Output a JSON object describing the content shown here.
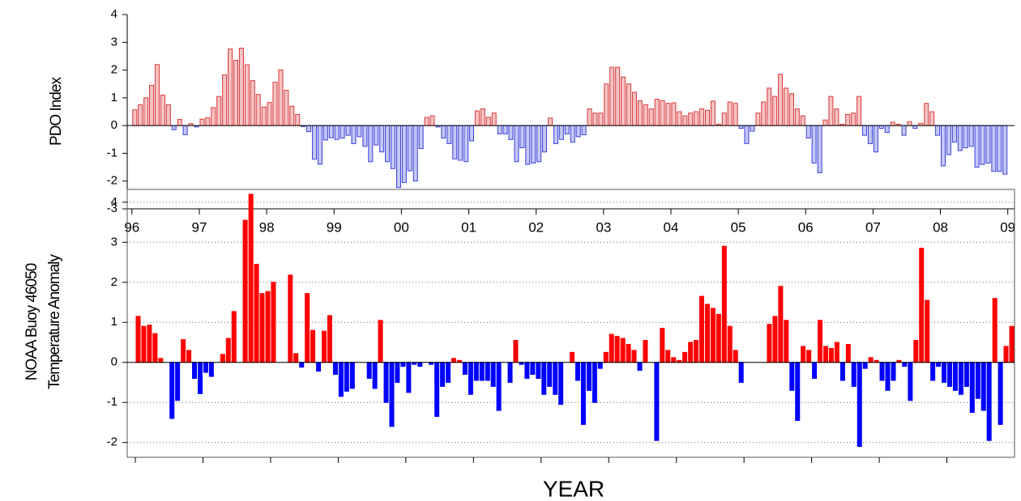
{
  "chart_data": [
    {
      "type": "bar",
      "ylabel": "PDO Index",
      "xlim": [
        1995.93,
        2009.1
      ],
      "ylim": [
        -3,
        4
      ],
      "xticks": [
        {
          "value": 1996,
          "label": "96"
        },
        {
          "value": 1997,
          "label": "97"
        },
        {
          "value": 1998,
          "label": "98"
        },
        {
          "value": 1999,
          "label": "99"
        },
        {
          "value": 2000,
          "label": "00"
        },
        {
          "value": 2001,
          "label": "01"
        },
        {
          "value": 2002,
          "label": "02"
        },
        {
          "value": 2003,
          "label": "03"
        },
        {
          "value": 2004,
          "label": "04"
        },
        {
          "value": 2005,
          "label": "05"
        },
        {
          "value": 2006,
          "label": "06"
        },
        {
          "value": 2007,
          "label": "07"
        },
        {
          "value": 2008,
          "label": "08"
        },
        {
          "value": 2009,
          "label": "09"
        }
      ],
      "yticks": [
        -3,
        -2,
        -1,
        0,
        1,
        2,
        3,
        4
      ],
      "grid": false,
      "positive_color": "#f6c4c4",
      "positive_edge": "#d9383a",
      "negative_color": "#c4c8f6",
      "negative_edge": "#3a40d9",
      "x": [
        1996.0,
        1996.083,
        1996.167,
        1996.25,
        1996.333,
        1996.417,
        1996.5,
        1996.583,
        1996.667,
        1996.75,
        1996.833,
        1996.917,
        1997.0,
        1997.083,
        1997.167,
        1997.25,
        1997.333,
        1997.417,
        1997.5,
        1997.583,
        1997.667,
        1997.75,
        1997.833,
        1997.917,
        1998.0,
        1998.083,
        1998.167,
        1998.25,
        1998.333,
        1998.417,
        1998.5,
        1998.583,
        1998.667,
        1998.75,
        1998.833,
        1998.917,
        1999.0,
        1999.083,
        1999.167,
        1999.25,
        1999.333,
        1999.417,
        1999.5,
        1999.583,
        1999.667,
        1999.75,
        1999.833,
        1999.917,
        2000.0,
        2000.083,
        2000.167,
        2000.25,
        2000.333,
        2000.417,
        2000.5,
        2000.583,
        2000.667,
        2000.75,
        2000.833,
        2000.917,
        2001.0,
        2001.083,
        2001.167,
        2001.25,
        2001.333,
        2001.417,
        2001.5,
        2001.583,
        2001.667,
        2001.75,
        2001.833,
        2001.917,
        2002.0,
        2002.083,
        2002.167,
        2002.25,
        2002.333,
        2002.417,
        2002.5,
        2002.583,
        2002.667,
        2002.75,
        2002.833,
        2002.917,
        2003.0,
        2003.083,
        2003.167,
        2003.25,
        2003.333,
        2003.417,
        2003.5,
        2003.583,
        2003.667,
        2003.75,
        2003.833,
        2003.917,
        2004.0,
        2004.083,
        2004.167,
        2004.25,
        2004.333,
        2004.417,
        2004.5,
        2004.583,
        2004.667,
        2004.75,
        2004.833,
        2004.917,
        2005.0,
        2005.083,
        2005.167,
        2005.25,
        2005.333,
        2005.417,
        2005.5,
        2005.583,
        2005.667,
        2005.75,
        2005.833,
        2005.917,
        2006.0,
        2006.083,
        2006.167,
        2006.25,
        2006.333,
        2006.417,
        2006.5,
        2006.583,
        2006.667,
        2006.75,
        2006.833,
        2006.917,
        2007.0,
        2007.083,
        2007.167,
        2007.25,
        2007.333,
        2007.417,
        2007.5,
        2007.583,
        2007.667,
        2007.75,
        2007.833,
        2007.917,
        2008.0,
        2008.083,
        2008.167,
        2008.25,
        2008.333,
        2008.417,
        2008.5,
        2008.583,
        2008.667,
        2008.75,
        2008.833,
        2008.917
      ],
      "values": [
        0.57,
        0.75,
        1.0,
        1.45,
        2.2,
        1.1,
        0.75,
        -0.15,
        0.22,
        -0.33,
        0.07,
        -0.05,
        0.23,
        0.28,
        0.65,
        1.05,
        1.83,
        2.76,
        2.35,
        2.79,
        2.19,
        1.62,
        1.12,
        0.67,
        0.83,
        1.56,
        2.01,
        1.27,
        0.7,
        0.4,
        -0.04,
        -0.22,
        -1.21,
        -1.39,
        -0.52,
        -0.44,
        -0.5,
        -0.45,
        -0.35,
        -0.65,
        -0.4,
        -0.75,
        -1.3,
        -0.7,
        -0.95,
        -1.3,
        -1.55,
        -2.23,
        -2.05,
        -1.63,
        -2.0,
        -0.83,
        0.29,
        0.35,
        -0.05,
        -0.45,
        -0.65,
        -1.2,
        -1.25,
        -1.3,
        -0.55,
        0.53,
        0.6,
        0.3,
        0.45,
        -0.3,
        -0.3,
        -0.5,
        -1.3,
        -0.8,
        -1.4,
        -1.35,
        -1.3,
        -0.95,
        0.27,
        -0.65,
        -0.5,
        -0.3,
        -0.6,
        -0.4,
        -0.33,
        0.6,
        0.45,
        0.45,
        1.5,
        2.1,
        2.1,
        1.75,
        1.5,
        1.2,
        0.9,
        0.75,
        0.6,
        0.95,
        0.9,
        0.8,
        0.82,
        0.5,
        0.35,
        0.45,
        0.5,
        0.6,
        0.55,
        0.88,
        0.05,
        0.45,
        0.85,
        0.8,
        -0.1,
        -0.65,
        -0.2,
        0.45,
        0.85,
        1.35,
        1.05,
        1.85,
        1.35,
        1.15,
        0.6,
        0.35,
        -0.45,
        -1.35,
        -1.7,
        0.2,
        1.05,
        0.6,
        0.05,
        0.4,
        0.45,
        1.05,
        -0.35,
        -0.65,
        -0.95,
        -0.1,
        -0.25,
        0.12,
        0.05,
        -0.35,
        0.14,
        -0.1,
        0.08,
        0.8,
        0.5,
        -0.35,
        -1.45,
        -1.05,
        -0.6,
        -0.9,
        -0.8,
        -0.75,
        -1.5,
        -1.4,
        -1.35,
        -1.65,
        -1.65,
        -1.75
      ]
    },
    {
      "type": "bar",
      "ylabel": [
        "NOAA Buoy 46050",
        "Temperature Anomaly"
      ],
      "xlabel": "YEAR",
      "xlim": [
        1995.88,
        2009.0
      ],
      "ylim": [
        -2.37,
        4.32
      ],
      "xticks": [
        1996,
        1997,
        1998,
        1999,
        2000,
        2001,
        2002,
        2003,
        2004,
        2005,
        2006,
        2007,
        2008
      ],
      "yticks": [
        -2,
        -1,
        0,
        1,
        2,
        3,
        4
      ],
      "grid": true,
      "positive_color": "#ff0000",
      "positive_edge": "#ff0000",
      "negative_color": "#0000ff",
      "negative_edge": "#0000ff",
      "x": [
        1996.0,
        1996.083,
        1996.167,
        1996.25,
        1996.333,
        1996.417,
        1996.5,
        1996.583,
        1996.667,
        1996.75,
        1996.833,
        1996.917,
        1997.0,
        1997.083,
        1997.167,
        1997.25,
        1997.333,
        1997.417,
        1997.5,
        1997.583,
        1997.667,
        1997.75,
        1997.833,
        1997.917,
        1998.0,
        1998.083,
        1998.167,
        1998.25,
        1998.333,
        1998.417,
        1998.5,
        1998.583,
        1998.667,
        1998.75,
        1998.833,
        1998.917,
        1999.0,
        1999.083,
        1999.167,
        1999.25,
        1999.333,
        1999.417,
        1999.5,
        1999.583,
        1999.667,
        1999.75,
        1999.833,
        1999.917,
        2000.0,
        2000.083,
        2000.167,
        2000.25,
        2000.333,
        2000.417,
        2000.5,
        2000.583,
        2000.667,
        2000.75,
        2000.833,
        2000.917,
        2001.0,
        2001.083,
        2001.167,
        2001.25,
        2001.333,
        2001.417,
        2001.5,
        2001.583,
        2001.667,
        2001.75,
        2001.833,
        2001.917,
        2002.0,
        2002.083,
        2002.167,
        2002.25,
        2002.333,
        2002.417,
        2002.5,
        2002.583,
        2002.667,
        2002.75,
        2002.833,
        2002.917,
        2003.0,
        2003.083,
        2003.167,
        2003.25,
        2003.333,
        2003.417,
        2003.5,
        2003.583,
        2003.667,
        2003.75,
        2003.833,
        2003.917,
        2004.0,
        2004.083,
        2004.167,
        2004.25,
        2004.333,
        2004.417,
        2004.5,
        2004.583,
        2004.667,
        2004.75,
        2004.833,
        2004.917,
        2005.0,
        2005.083,
        2005.167,
        2005.25,
        2005.333,
        2005.417,
        2005.5,
        2005.583,
        2005.667,
        2005.75,
        2005.833,
        2005.917,
        2006.0,
        2006.083,
        2006.167,
        2006.25,
        2006.333,
        2006.417,
        2006.5,
        2006.583,
        2006.667,
        2006.75,
        2006.833,
        2006.917,
        2007.0,
        2007.083,
        2007.167,
        2007.25,
        2007.333,
        2007.417,
        2007.5,
        2007.583,
        2007.667,
        2007.75,
        2007.833,
        2007.917,
        2008.0,
        2008.083,
        2008.167,
        2008.25,
        2008.333,
        2008.417,
        2008.5,
        2008.583,
        2008.667,
        2008.75,
        2008.833,
        2008.917
      ],
      "values": [
        1.15,
        0.9,
        0.93,
        0.72,
        0.1,
        null,
        -1.4,
        -0.95,
        0.57,
        0.3,
        -0.4,
        -0.78,
        -0.25,
        -0.35,
        null,
        0.2,
        0.6,
        1.27,
        null,
        3.55,
        4.2,
        2.45,
        1.72,
        1.77,
        2.0,
        null,
        null,
        2.18,
        0.22,
        -0.12,
        1.72,
        0.8,
        -0.22,
        0.78,
        1.17,
        -0.3,
        -0.85,
        -0.72,
        -0.65,
        null,
        null,
        -0.4,
        -0.65,
        1.05,
        -1.0,
        -1.6,
        -0.5,
        -0.1,
        -0.75,
        -0.05,
        -0.1,
        null,
        -0.05,
        -1.35,
        -0.6,
        -0.5,
        0.1,
        0.05,
        -0.3,
        -0.8,
        -0.45,
        -0.45,
        -0.45,
        -0.6,
        -1.2,
        null,
        -0.5,
        0.55,
        -0.05,
        -0.4,
        -0.3,
        -0.4,
        -0.8,
        -0.6,
        -0.8,
        -1.05,
        null,
        0.25,
        -0.45,
        -1.55,
        -0.7,
        -1.0,
        -0.15,
        0.25,
        0.7,
        0.65,
        0.6,
        0.45,
        0.3,
        -0.2,
        0.55,
        null,
        -1.95,
        0.85,
        0.3,
        0.12,
        0.05,
        0.25,
        0.5,
        0.55,
        1.65,
        1.45,
        1.35,
        1.2,
        2.9,
        0.9,
        0.3,
        -0.5,
        null,
        null,
        null,
        null,
        0.95,
        1.15,
        1.9,
        1.05,
        -0.7,
        -1.45,
        0.4,
        0.3,
        -0.4,
        1.05,
        0.4,
        0.35,
        0.5,
        -0.45,
        0.45,
        -0.6,
        -2.1,
        -0.15,
        0.12,
        0.05,
        -0.45,
        -0.7,
        -0.45,
        0.05,
        -0.1,
        -0.95,
        0.55,
        2.85,
        1.55,
        -0.45,
        -0.1,
        -0.5,
        -0.6,
        -0.7,
        -0.8,
        -0.6,
        -1.25,
        -0.9,
        -1.2,
        -1.95,
        1.6,
        -1.55,
        0.4,
        0.9
      ]
    }
  ]
}
